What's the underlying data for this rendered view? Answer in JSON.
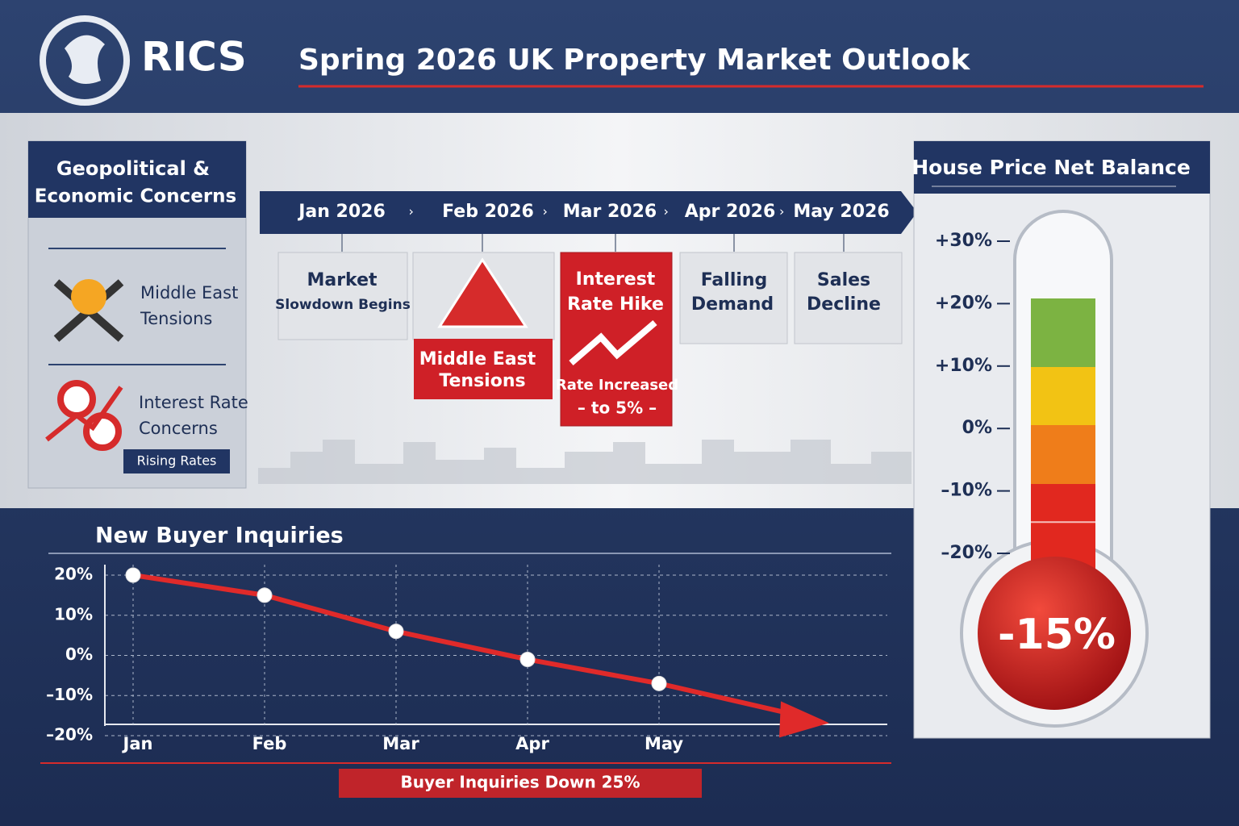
{
  "header": {
    "logo": "RICS",
    "title": "Spring 2026 UK Property Market Outlook"
  },
  "sidebar": {
    "title_lines": [
      "Geopolitical &",
      "Economic Concerns"
    ],
    "items": [
      {
        "lines": [
          "Middle East",
          "Tensions"
        ]
      },
      {
        "lines": [
          "Interest Rate",
          "Concerns"
        ],
        "tag": "Rising Rates"
      }
    ]
  },
  "timeline": {
    "months": [
      "Jan 2026",
      "Feb 2026",
      "Mar 2026",
      "Apr 2026",
      "May 2026"
    ],
    "cards": [
      {
        "lines": [
          "Market",
          "Slowdown Begins"
        ]
      },
      {
        "lines": [
          "Middle East",
          "Tensions"
        ]
      },
      {
        "lines": [
          "Interest",
          "Rate Hike"
        ],
        "note_lines": [
          "Rate Increased",
          "– to 5% –"
        ]
      },
      {
        "lines": [
          "Falling",
          "Demand"
        ]
      },
      {
        "lines": [
          "Sales",
          "Decline"
        ]
      }
    ]
  },
  "chart_data": [
    {
      "type": "line",
      "title": "New Buyer Inquiries",
      "categories": [
        "Jan",
        "Feb",
        "Mar",
        "Apr",
        "May"
      ],
      "values": [
        20,
        15,
        6,
        -1,
        -7
      ],
      "color": "#e02a2a",
      "ylim": [
        -20,
        20
      ],
      "yticks": [
        {
          "value": 20,
          "label": "20%"
        },
        {
          "value": 10,
          "label": "10%"
        },
        {
          "value": 0,
          "label": "0%"
        },
        {
          "value": -10,
          "label": "–10%"
        },
        {
          "value": -20,
          "label": "–20%"
        }
      ],
      "grid": true,
      "annotation": "Buyer Inquiries Down 25%"
    },
    {
      "type": "thermometer",
      "title": "House Price Net Balance",
      "value": -15,
      "value_label": "-15%",
      "ylim": [
        -20,
        30
      ],
      "yticks": [
        {
          "value": 30,
          "label": "+30%"
        },
        {
          "value": 20,
          "label": "+20%"
        },
        {
          "value": 10,
          "label": "+10%"
        },
        {
          "value": 0,
          "label": "0%"
        },
        {
          "value": -10,
          "label": "–10%"
        },
        {
          "value": -20,
          "label": "–20%"
        }
      ]
    }
  ]
}
